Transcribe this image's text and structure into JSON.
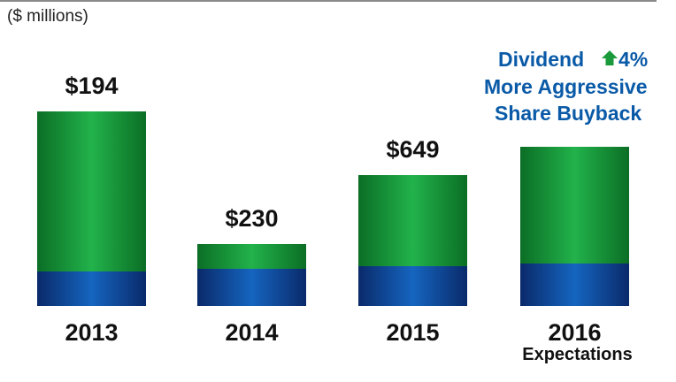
{
  "units_label": "($ millions)",
  "colors": {
    "green_dark": "#0b7d2a",
    "green_light": "#1fb24a",
    "blue_dark": "#0a2a6a",
    "blue_light": "#1565c0",
    "note_blue": "#0a5aa8",
    "up_arrow": "#1a9a3a"
  },
  "annotation": {
    "line1_pre": "Dividend",
    "line1_post": "4%",
    "line1_icon": "up-arrow-icon",
    "line2": "More Aggressive",
    "line3": "Share Buyback"
  },
  "chart_data": {
    "type": "bar",
    "categories": [
      "2013",
      "2014",
      "2015",
      "2016"
    ],
    "category_sublabels": [
      "",
      "",
      "",
      "Expectations"
    ],
    "value_labels": [
      "$194",
      "$230",
      "$649",
      ""
    ],
    "stacked_segments": [
      {
        "name": "",
        "color": "blue",
        "values": [
          0.39,
          0.42,
          0.45,
          0.48
        ]
      },
      {
        "name": "",
        "color": "green",
        "values": [
          1.81,
          0.28,
          1.03,
          1.32
        ]
      }
    ],
    "title": "",
    "xlabel": "",
    "ylabel": "",
    "ylim": [
      0,
      2.2
    ],
    "grid": false,
    "legend": "none"
  }
}
